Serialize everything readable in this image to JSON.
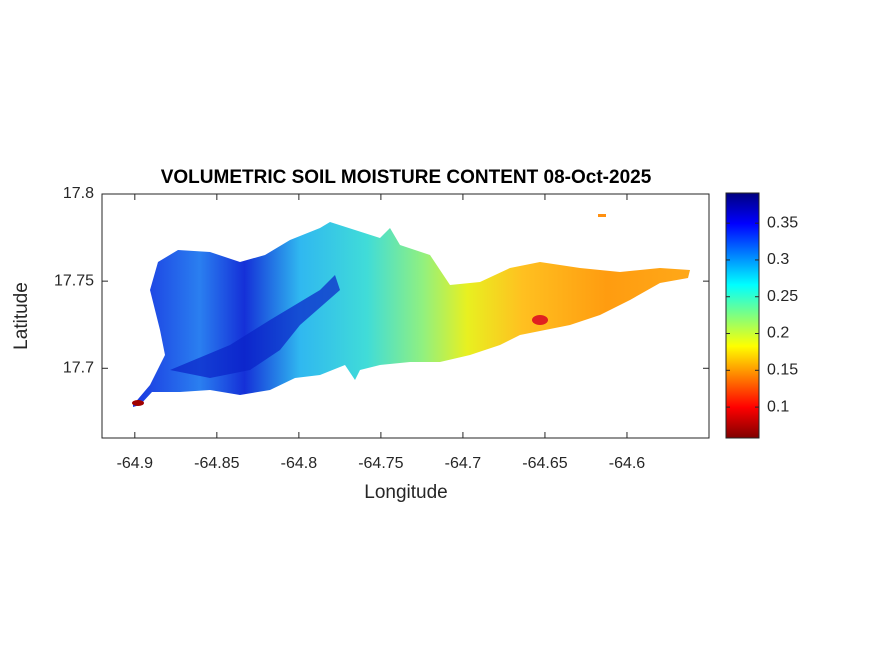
{
  "chart_data": {
    "type": "map",
    "title": "VOLUMETRIC SOIL MOISTURE CONTENT 08-Oct-2025",
    "x_label": "Longitude",
    "y_label": "Latitude",
    "xlim": [
      -64.92,
      -64.55
    ],
    "xticks": [
      -64.9,
      -64.85,
      -64.8,
      -64.75,
      -64.7,
      -64.65,
      -64.6
    ],
    "ylim": [
      17.66,
      17.8
    ],
    "yticks": [
      17.7,
      17.75,
      17.8
    ],
    "colormap": "jet",
    "clim": [
      0.058,
      0.391
    ],
    "cticks": [
      0.1,
      0.15,
      0.2,
      0.25,
      0.3,
      0.35
    ]
  }
}
